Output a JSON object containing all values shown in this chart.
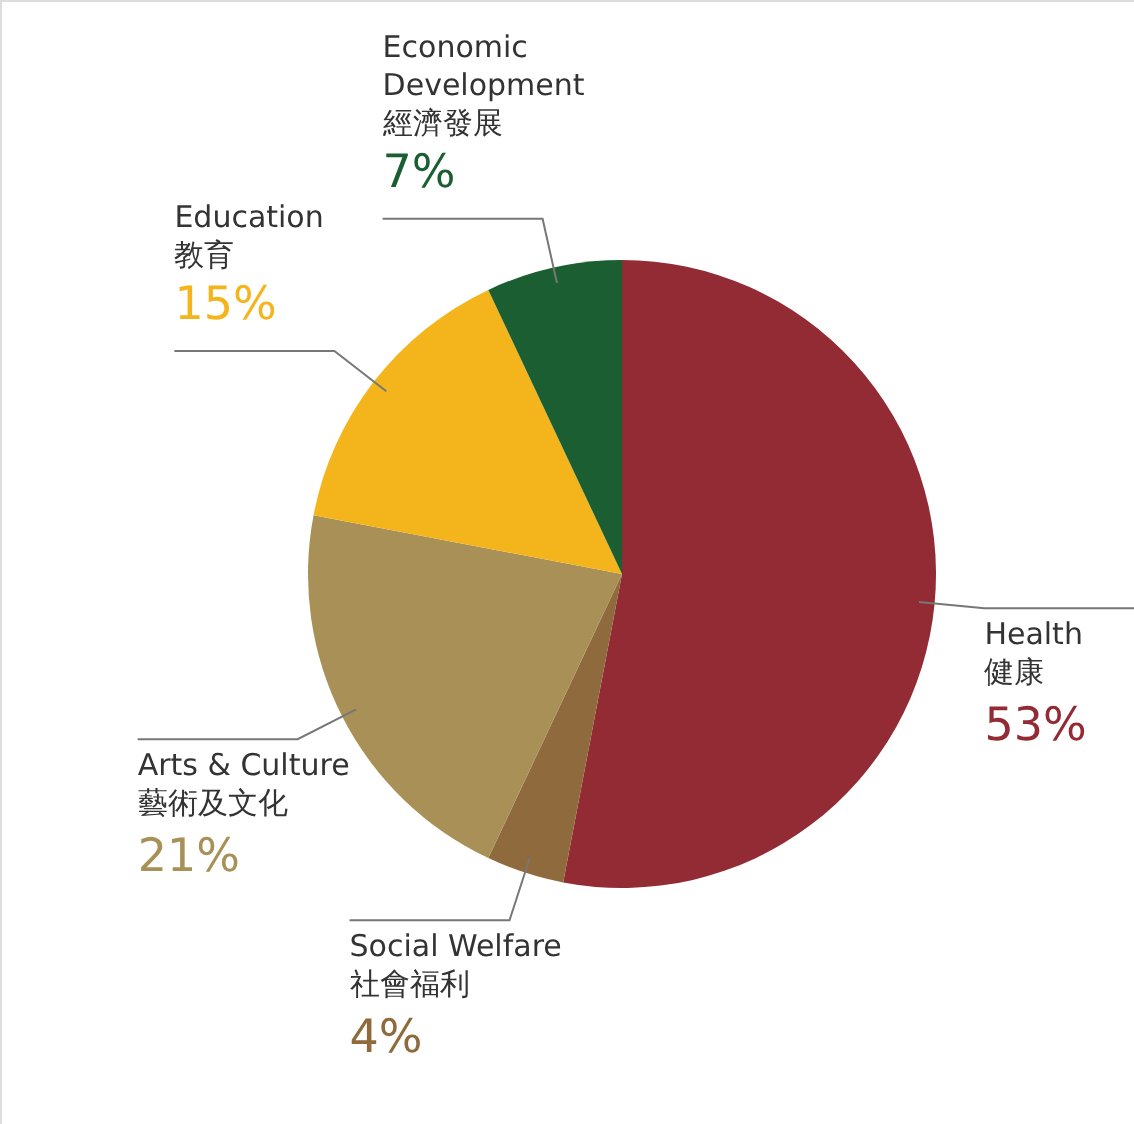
{
  "chart_data": {
    "type": "pie",
    "categories": [
      "Health\n健康",
      "Social Welfare\n社會福利",
      "Arts & Culture\n藝術及文化",
      "Education\n教育",
      "Economic\nDevelopment\n經濟發展"
    ],
    "values": [
      53,
      4,
      21,
      15,
      7
    ],
    "colors": [
      "#922b33",
      "#8f6a3c",
      "#a89056",
      "#f4b51c",
      "#1b5e31"
    ],
    "value_labels": [
      "53%",
      "4%",
      "21%",
      "15%",
      "7%"
    ]
  }
}
